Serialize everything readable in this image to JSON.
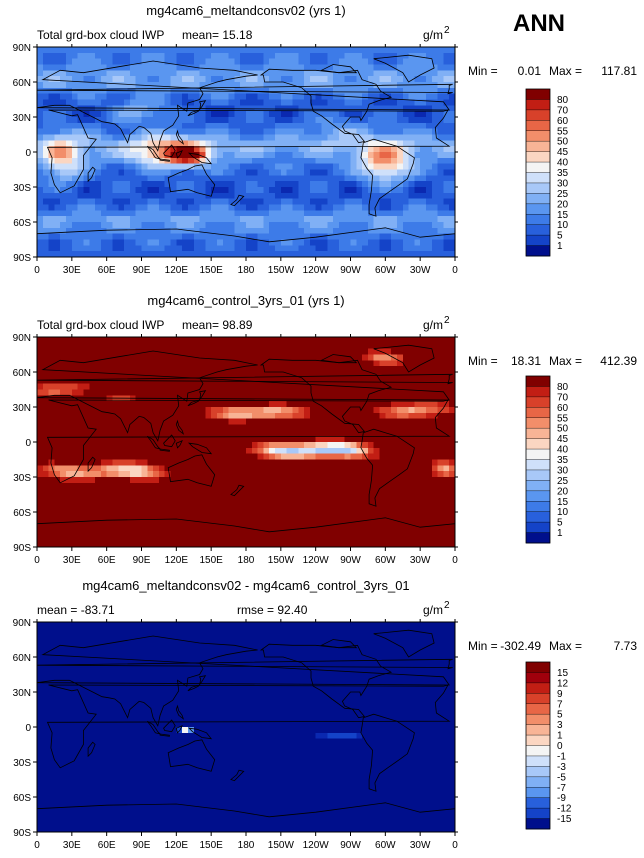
{
  "season_label": "ANN",
  "palette": {
    "pos_colors": [
      "#000f8c",
      "#0a28b0",
      "#1443c8",
      "#2860dc",
      "#3d7be8",
      "#5a96f0",
      "#80b0f5",
      "#a8c8f8",
      "#cfe0fa",
      "#f4f4f4",
      "#fbd6c2",
      "#f8b496",
      "#f28e6a",
      "#e86646",
      "#d8412a",
      "#c21e14",
      "#a0000c",
      "#800000"
    ],
    "neg_colors": [
      "#000f8c",
      "#0a28b0",
      "#1443c8",
      "#2860dc",
      "#3d7be8",
      "#5a96f0",
      "#80b0f5",
      "#a8c8f8",
      "#cfe0fa",
      "#f4f4f4",
      "#fbd6c2",
      "#f8b496",
      "#f28e6a",
      "#e86646",
      "#d8412a",
      "#c21e14",
      "#800000"
    ],
    "land_line": "#000000"
  },
  "chart_data": [
    {
      "type": "heatmap",
      "title": "mg4cam6_meltandconsv02 (yrs 1)",
      "left_label": "Total grd-box cloud IWP",
      "mean_label": "mean=",
      "mean_value": "15.18",
      "units_label": "g/m",
      "units_exp": "2",
      "min_label": "Min =",
      "min_value": "0.01",
      "max_label": "Max =",
      "max_value": "117.81",
      "x_ticks": [
        "0",
        "30E",
        "60E",
        "90E",
        "120E",
        "150E",
        "180",
        "150W",
        "120W",
        "90W",
        "60W",
        "30W",
        "0"
      ],
      "y_ticks": [
        "90N",
        "60N",
        "30N",
        "0",
        "30S",
        "60S",
        "90S"
      ],
      "levels": [
        "80",
        "70",
        "60",
        "55",
        "50",
        "45",
        "40",
        "35",
        "30",
        "25",
        "20",
        "15",
        "10",
        "5",
        "1"
      ],
      "field": "meltandconsv"
    },
    {
      "type": "heatmap",
      "title": "mg4cam6_control_3yrs_01 (yrs 1)",
      "left_label": "Total grd-box cloud IWP",
      "mean_label": "mean=",
      "mean_value": "98.89",
      "units_label": "g/m",
      "units_exp": "2",
      "min_label": "Min =",
      "min_value": "18.31",
      "max_label": "Max =",
      "max_value": "412.39",
      "x_ticks": [
        "0",
        "30E",
        "60E",
        "90E",
        "120E",
        "150E",
        "180",
        "150W",
        "120W",
        "90W",
        "60W",
        "30W",
        "0"
      ],
      "y_ticks": [
        "90N",
        "60N",
        "30N",
        "0",
        "30S",
        "60S",
        "90S"
      ],
      "levels": [
        "80",
        "70",
        "60",
        "55",
        "50",
        "45",
        "40",
        "35",
        "30",
        "25",
        "20",
        "15",
        "10",
        "5",
        "1"
      ],
      "field": "control"
    },
    {
      "type": "heatmap",
      "title": "mg4cam6_meltandconsv02 - mg4cam6_control_3yrs_01",
      "left_label": "",
      "mean_label": "mean =",
      "mean_value": "-83.71",
      "rmse_label": "rmse =",
      "rmse_value": "92.40",
      "units_label": "g/m",
      "units_exp": "2",
      "min_label": "Min =",
      "min_value": "-302.49",
      "max_label": "Max =",
      "max_value": "7.73",
      "x_ticks": [
        "0",
        "30E",
        "60E",
        "90E",
        "120E",
        "150E",
        "180",
        "150W",
        "120W",
        "90W",
        "60W",
        "30W",
        "0"
      ],
      "y_ticks": [
        "90N",
        "60N",
        "30N",
        "0",
        "30S",
        "60S",
        "90S"
      ],
      "levels": [
        "15",
        "12",
        "9",
        "7",
        "5",
        "3",
        "1",
        "0",
        "-1",
        "-3",
        "-5",
        "-7",
        "-9",
        "-12",
        "-15"
      ],
      "field": "difference"
    }
  ]
}
